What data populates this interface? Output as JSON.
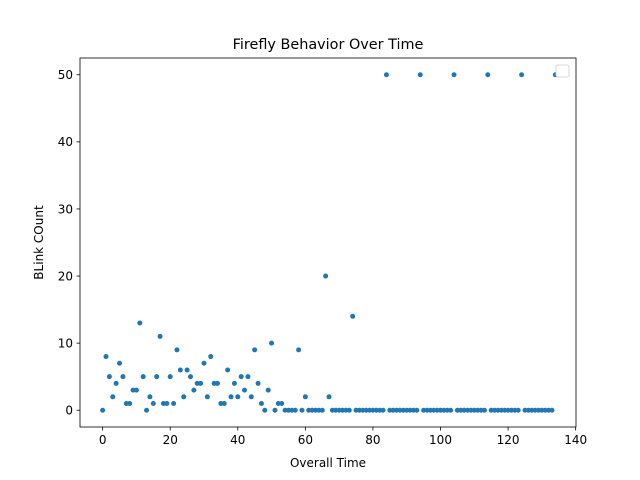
{
  "chart_data": {
    "type": "scatter",
    "title": "Firefly Behavior Over Time",
    "xlabel": "Overall Time",
    "ylabel": "BLink COunt",
    "xlim": [
      -6.7,
      140.1
    ],
    "ylim": [
      -2.5,
      52.5
    ],
    "xticks": [
      0,
      20,
      40,
      60,
      80,
      100,
      120,
      140
    ],
    "yticks": [
      0,
      10,
      20,
      30,
      40,
      50
    ],
    "grid": false,
    "legend": {
      "placement": "upper right",
      "entries": []
    },
    "marker_color": "#1f77b4",
    "series": [
      {
        "x": [
          0,
          1,
          2,
          3,
          4,
          5,
          6,
          7,
          8,
          9,
          10,
          11,
          12,
          13,
          14,
          15,
          16,
          17,
          18,
          19,
          20,
          21,
          22,
          23,
          24,
          25,
          26,
          27,
          28,
          29,
          30,
          31,
          32,
          33,
          34,
          35,
          36,
          37,
          38,
          39,
          40,
          41,
          42,
          43,
          44,
          45,
          46,
          47,
          48,
          49,
          50,
          51,
          52,
          53,
          54,
          55,
          56,
          57,
          58,
          59,
          60,
          61,
          62,
          63,
          64,
          65,
          66,
          67,
          68,
          69,
          70,
          71,
          72,
          73,
          74,
          75,
          76,
          77,
          78,
          79,
          80,
          81,
          82,
          83,
          84,
          85,
          86,
          87,
          88,
          89,
          90,
          91,
          92,
          93,
          94,
          95,
          96,
          97,
          98,
          99,
          100,
          101,
          102,
          103,
          104,
          105,
          106,
          107,
          108,
          109,
          110,
          111,
          112,
          113,
          114,
          115,
          116,
          117,
          118,
          119,
          120,
          121,
          122,
          123,
          124,
          125,
          126,
          127,
          128,
          129,
          130,
          131,
          132,
          133,
          134
        ],
        "y": [
          0,
          8,
          5,
          2,
          4,
          7,
          5,
          1,
          1,
          3,
          3,
          13,
          5,
          0,
          2,
          1,
          5,
          11,
          1,
          1,
          5,
          1,
          9,
          6,
          2,
          6,
          5,
          3,
          4,
          4,
          7,
          2,
          8,
          4,
          4,
          1,
          1,
          6,
          2,
          4,
          2,
          5,
          3,
          5,
          2,
          9,
          4,
          1,
          0,
          3,
          10,
          0,
          1,
          1,
          0,
          0,
          0,
          0,
          9,
          0,
          2,
          0,
          0,
          0,
          0,
          0,
          20,
          2,
          0,
          0,
          0,
          0,
          0,
          0,
          14,
          0,
          0,
          0,
          0,
          0,
          0,
          0,
          0,
          0,
          50,
          0,
          0,
          0,
          0,
          0,
          0,
          0,
          0,
          0,
          50,
          0,
          0,
          0,
          0,
          0,
          0,
          0,
          0,
          0,
          50,
          0,
          0,
          0,
          0,
          0,
          0,
          0,
          0,
          0,
          50,
          0,
          0,
          0,
          0,
          0,
          0,
          0,
          0,
          0,
          50,
          0,
          0,
          0,
          0,
          0,
          0,
          0,
          0,
          0,
          50
        ]
      }
    ]
  }
}
